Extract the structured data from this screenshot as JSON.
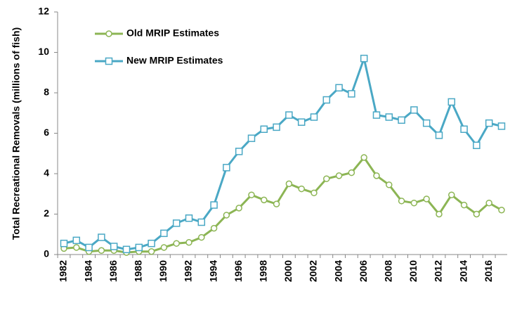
{
  "chart_data": {
    "type": "line",
    "y_label": "Total Recreational Removals (millions of fish)",
    "categories": [
      "1982",
      null,
      "1984",
      null,
      "1986",
      null,
      "1988",
      null,
      "1990",
      null,
      "1992",
      null,
      "1994",
      null,
      "1996",
      null,
      "1998",
      null,
      "2000",
      null,
      "2002",
      null,
      "2004",
      null,
      "2006",
      null,
      "2008",
      null,
      "2010",
      null,
      "2012",
      null,
      "2014",
      null,
      "2016",
      null
    ],
    "series": [
      {
        "name": "Old MRIP Estimates",
        "color": "#8cb554",
        "marker": "circle",
        "values": [
          0.3,
          0.35,
          0.15,
          0.2,
          0.2,
          0.1,
          0.15,
          0.15,
          0.35,
          0.55,
          0.6,
          0.85,
          1.3,
          1.95,
          2.3,
          2.95,
          2.7,
          2.5,
          3.5,
          3.25,
          3.05,
          3.75,
          3.9,
          4.05,
          4.8,
          3.9,
          3.45,
          2.65,
          2.55,
          2.75,
          2.0,
          2.95,
          2.45,
          2.0,
          2.55,
          2.2
        ]
      },
      {
        "name": "New MRIP Estimates",
        "color": "#4aa8c5",
        "marker": "square",
        "values": [
          0.55,
          0.7,
          0.35,
          0.85,
          0.4,
          0.25,
          0.35,
          0.55,
          1.05,
          1.55,
          1.8,
          1.6,
          2.45,
          4.3,
          5.1,
          5.75,
          6.2,
          6.3,
          6.9,
          6.55,
          6.8,
          7.65,
          8.25,
          7.95,
          9.7,
          6.9,
          6.8,
          6.65,
          7.15,
          6.5,
          5.9,
          7.55,
          6.2,
          5.4,
          6.5,
          6.35
        ]
      }
    ],
    "ylim": [
      0,
      12
    ],
    "yticks": [
      0,
      2,
      4,
      6,
      8,
      10,
      12
    ],
    "grid": false,
    "legend": "top-left"
  }
}
